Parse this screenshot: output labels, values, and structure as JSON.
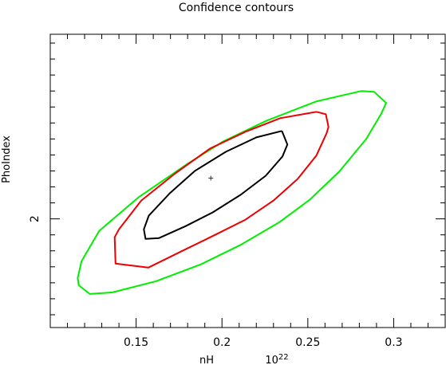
{
  "chart_data": {
    "type": "line",
    "title": "Confidence contours",
    "xlabel": "nH",
    "xunit": "10^22",
    "ylabel": "PhoIndex",
    "xlim": [
      0.1,
      0.33
    ],
    "ylim": [
      1.864,
      2.231
    ],
    "x_ticks": [
      0.15,
      0.2,
      0.25,
      0.3
    ],
    "x_tick_labels": [
      "0.15",
      "0.2",
      "0.25",
      "0.3"
    ],
    "y_ticks": [
      2.0
    ],
    "y_tick_labels": [
      "2"
    ],
    "best_fit": {
      "x": 0.1935,
      "y": 2.051
    },
    "series": [
      {
        "color": "#00ee00",
        "x": [
          0.2812,
          0.2886,
          0.2956,
          0.2926,
          0.284,
          0.2682,
          0.2511,
          0.2336,
          0.2105,
          0.1876,
          0.1617,
          0.1362,
          0.123,
          0.1166,
          0.116,
          0.1182,
          0.1285,
          0.1514,
          0.1793,
          0.2008,
          0.2261,
          0.255,
          0.2812
        ],
        "y": [
          2.16,
          2.159,
          2.145,
          2.131,
          2.1,
          2.059,
          2.024,
          1.996,
          1.967,
          1.943,
          1.922,
          1.908,
          1.906,
          1.917,
          1.926,
          1.947,
          1.985,
          2.027,
          2.068,
          2.097,
          2.123,
          2.147,
          2.16
        ]
      },
      {
        "color": "#ee0000",
        "x": [
          0.255,
          0.2605,
          0.262,
          0.2609,
          0.2549,
          0.2441,
          0.23,
          0.2137,
          0.196,
          0.177,
          0.1571,
          0.138,
          0.1375,
          0.14,
          0.153,
          0.1728,
          0.193,
          0.2137,
          0.2339,
          0.255
        ],
        "y": [
          2.134,
          2.131,
          2.115,
          2.107,
          2.079,
          2.05,
          2.023,
          1.999,
          1.98,
          1.96,
          1.939,
          1.944,
          1.977,
          1.987,
          2.023,
          2.057,
          2.088,
          2.109,
          2.126,
          2.134
        ]
      },
      {
        "color": "#000000",
        "x": [
          0.2349,
          0.2381,
          0.2352,
          0.2255,
          0.2108,
          0.1945,
          0.1789,
          0.1634,
          0.1555,
          0.1545,
          0.1574,
          0.1696,
          0.1842,
          0.2023,
          0.22,
          0.2349
        ],
        "y": [
          2.11,
          2.093,
          2.078,
          2.054,
          2.03,
          2.008,
          1.991,
          1.976,
          1.975,
          1.987,
          2.004,
          2.032,
          2.06,
          2.084,
          2.102,
          2.11
        ]
      }
    ]
  }
}
